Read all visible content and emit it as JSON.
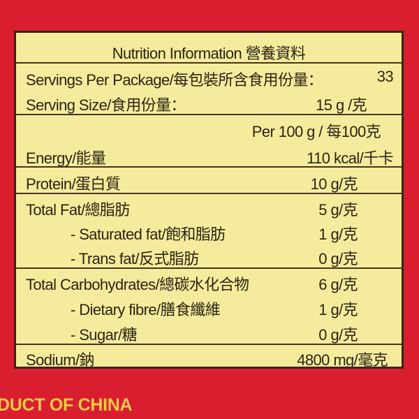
{
  "title": "Nutrition Information 營養資料",
  "servings_per_package": {
    "label": "Servings Per Package/每包裝所含食用份量：",
    "value": "33"
  },
  "serving_size": {
    "label": "Serving Size/食用份量：",
    "value": "15 g /克"
  },
  "per_header": "Per  100 g / 每100克",
  "nutrients": [
    {
      "label": "Energy/能量",
      "value": "110 kcal/千卡"
    },
    {
      "label": "Protein/蛋白質",
      "value": "10 g/克"
    },
    {
      "label": "Total Fat/總脂肪",
      "value": "5 g/克"
    },
    {
      "label": "- Saturated fat/飽和脂肪",
      "value": "1 g/克"
    },
    {
      "label": "- Trans fat/反式脂肪",
      "value": "0 g/克"
    },
    {
      "label": "Total Carbohydrates/總碳水化合物",
      "value": "6 g/克"
    },
    {
      "label": "- Dietary fibre/膳食纖維",
      "value": "1 g/克"
    },
    {
      "label": "- Sugar/糖",
      "value": "0 g/克"
    },
    {
      "label": "Sodium/鈉",
      "value": "4800 mg/毫克"
    }
  ],
  "footer": "DUCT OF CHINA",
  "colors": {
    "background": "#d91f2f",
    "label": "#f4ec9c",
    "border": "#3b2416",
    "footer_text": "#f6c94a"
  }
}
